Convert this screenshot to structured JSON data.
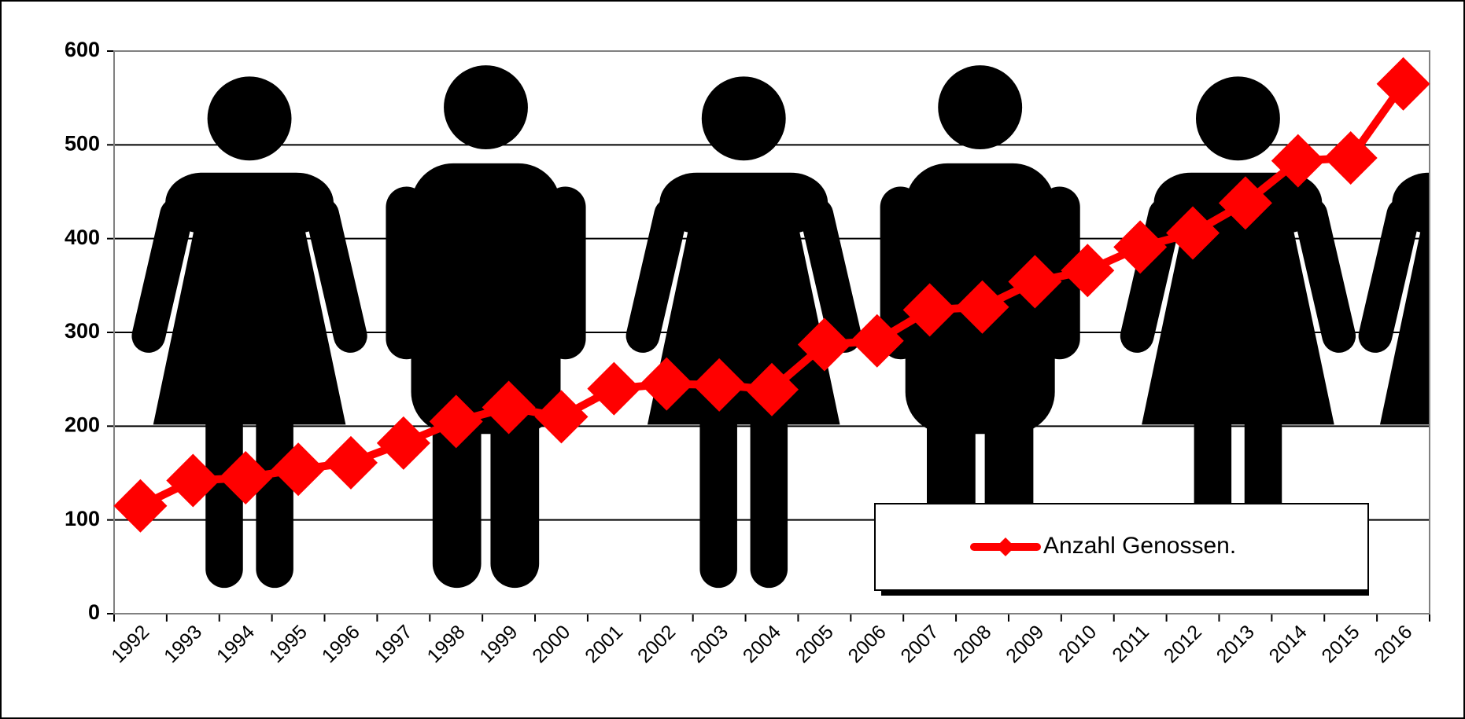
{
  "chart_data": {
    "type": "line",
    "categories": [
      "1992",
      "1993",
      "1994",
      "1995",
      "1996",
      "1997",
      "1998",
      "1999",
      "2000",
      "2001",
      "2002",
      "2003",
      "2004",
      "2005",
      "2006",
      "2007",
      "2008",
      "2009",
      "2010",
      "2011",
      "2012",
      "2013",
      "2014",
      "2015",
      "2016"
    ],
    "series": [
      {
        "name": "Anzahl Genossen.",
        "color": "#ff0000",
        "values": [
          115,
          142,
          145,
          154,
          161,
          182,
          205,
          220,
          210,
          240,
          245,
          244,
          239,
          287,
          291,
          324,
          327,
          354,
          366,
          391,
          406,
          438,
          483,
          486,
          565
        ]
      }
    ],
    "ylim": [
      0,
      600
    ],
    "yticks": [
      0,
      100,
      200,
      300,
      400,
      500,
      600
    ],
    "grid": true
  }
}
